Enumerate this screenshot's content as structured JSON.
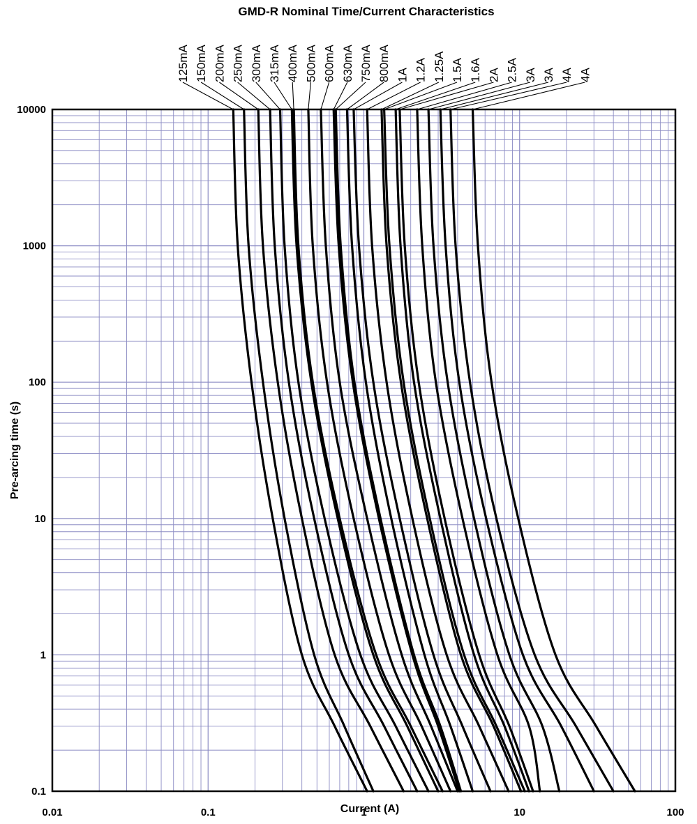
{
  "chart_data": {
    "type": "line",
    "title": "GMD-R Nominal Time/Current Characteristics",
    "xlabel": "Current (A)",
    "ylabel": "Pre-arcing time (s)",
    "xscale": "log",
    "yscale": "log",
    "xlim": [
      0.01,
      100
    ],
    "ylim": [
      0.1,
      10000
    ],
    "grid": true,
    "legend": "labels above plot with leader lines",
    "x_tick_labels": [
      "0.01",
      "0.1",
      "1",
      "10",
      "100"
    ],
    "y_tick_labels": [
      "0.1",
      "1",
      "10",
      "100",
      "1000",
      "10000"
    ],
    "colors": {
      "grid": "#8c8cc4",
      "curve": "#000000",
      "frame": "#000000"
    },
    "series": [
      {
        "name": "125mA",
        "x": [
          0.145,
          0.155,
          0.19,
          0.26,
          0.4,
          0.65,
          1.05
        ],
        "y": [
          10000,
          1000,
          100,
          10,
          1,
          0.3,
          0.1
        ]
      },
      {
        "name": "150mA",
        "x": [
          0.17,
          0.182,
          0.225,
          0.31,
          0.48,
          0.75,
          1.15
        ],
        "y": [
          10000,
          1000,
          100,
          10,
          1,
          0.3,
          0.1
        ]
      },
      {
        "name": "200mA",
        "x": [
          0.21,
          0.225,
          0.28,
          0.4,
          0.65,
          1.1,
          1.8
        ],
        "y": [
          10000,
          1000,
          100,
          10,
          1,
          0.3,
          0.1
        ]
      },
      {
        "name": "250mA",
        "x": [
          0.25,
          0.268,
          0.33,
          0.48,
          0.8,
          1.35,
          2.2
        ],
        "y": [
          10000,
          1000,
          100,
          10,
          1,
          0.3,
          0.1
        ]
      },
      {
        "name": "300mA",
        "x": [
          0.29,
          0.31,
          0.38,
          0.56,
          0.95,
          1.6,
          2.6
        ],
        "y": [
          10000,
          1000,
          100,
          10,
          1,
          0.3,
          0.1
        ]
      },
      {
        "name": "315mA",
        "x": [
          0.345,
          0.37,
          0.46,
          0.68,
          1.15,
          1.9,
          3.0
        ],
        "y": [
          10000,
          1000,
          100,
          10,
          1,
          0.3,
          0.1
        ]
      },
      {
        "name": "400mA",
        "x": [
          0.355,
          0.38,
          0.47,
          0.7,
          1.2,
          2.0,
          3.2
        ],
        "y": [
          10000,
          1000,
          100,
          10,
          1,
          0.3,
          0.1
        ]
      },
      {
        "name": "500mA",
        "x": [
          0.44,
          0.47,
          0.58,
          0.86,
          1.45,
          2.35,
          3.6
        ],
        "y": [
          10000,
          1000,
          100,
          10,
          1,
          0.3,
          0.1
        ]
      },
      {
        "name": "600mA",
        "x": [
          0.53,
          0.57,
          0.7,
          1.05,
          1.75,
          2.7,
          4.0
        ],
        "y": [
          10000,
          1000,
          100,
          10,
          1,
          0.3,
          0.1
        ]
      },
      {
        "name": "630mA",
        "x": [
          0.64,
          0.69,
          0.85,
          1.25,
          2.05,
          3.0,
          4.1
        ],
        "y": [
          10000,
          1000,
          100,
          10,
          1,
          0.3,
          0.1
        ]
      },
      {
        "name": "750mA",
        "x": [
          0.66,
          0.71,
          0.87,
          1.28,
          2.1,
          3.1,
          4.2
        ],
        "y": [
          10000,
          1000,
          100,
          10,
          1,
          0.3,
          0.1
        ]
      },
      {
        "name": "800mA",
        "x": [
          0.78,
          0.84,
          1.03,
          1.5,
          2.45,
          3.6,
          5.0
        ],
        "y": [
          10000,
          1000,
          100,
          10,
          1,
          0.3,
          0.1
        ]
      },
      {
        "name": "1A",
        "x": [
          0.86,
          0.93,
          1.15,
          1.7,
          2.8,
          4.3,
          6.5
        ],
        "y": [
          10000,
          1000,
          100,
          10,
          1,
          0.3,
          0.1
        ]
      },
      {
        "name": "1.2A",
        "x": [
          1.05,
          1.13,
          1.4,
          2.05,
          3.4,
          5.5,
          8.5
        ],
        "y": [
          10000,
          1000,
          100,
          10,
          1,
          0.3,
          0.1
        ]
      },
      {
        "name": "1.25A",
        "x": [
          1.3,
          1.4,
          1.73,
          2.55,
          4.2,
          6.8,
          10.2
        ],
        "y": [
          10000,
          1000,
          100,
          10,
          1,
          0.3,
          0.1
        ]
      },
      {
        "name": "1.5A",
        "x": [
          1.35,
          1.46,
          1.8,
          2.65,
          4.4,
          7.1,
          10.8
        ],
        "y": [
          10000,
          1000,
          100,
          10,
          1,
          0.3,
          0.1
        ]
      },
      {
        "name": "1.6A",
        "x": [
          1.6,
          1.72,
          2.1,
          3.1,
          5.1,
          8.0,
          11.5
        ],
        "y": [
          10000,
          1000,
          100,
          10,
          1,
          0.3,
          0.1
        ]
      },
      {
        "name": "2A",
        "x": [
          1.7,
          1.83,
          2.25,
          3.3,
          5.5,
          8.6,
          12.2
        ],
        "y": [
          10000,
          1000,
          100,
          10,
          1,
          0.3,
          0.1
        ]
      },
      {
        "name": "2.5A",
        "x": [
          2.2,
          2.37,
          2.9,
          4.3,
          7.2,
          11.5,
          13.5
        ],
        "y": [
          10000,
          1000,
          100,
          10,
          1,
          0.3,
          0.1
        ]
      },
      {
        "name": "3A",
        "x": [
          2.6,
          2.8,
          3.45,
          5.1,
          8.6,
          14.0,
          18.0
        ],
        "y": [
          10000,
          1000,
          100,
          10,
          1,
          0.3,
          0.1
        ]
      },
      {
        "name": "3A",
        "x": [
          3.1,
          3.35,
          4.1,
          6.1,
          10.5,
          18.5,
          30.0
        ],
        "y": [
          10000,
          1000,
          100,
          10,
          1,
          0.3,
          0.1
        ]
      },
      {
        "name": "4A",
        "x": [
          3.6,
          3.88,
          4.8,
          7.1,
          12.5,
          23.0,
          40.0
        ],
        "y": [
          10000,
          1000,
          100,
          10,
          1,
          0.3,
          0.1
        ]
      },
      {
        "name": "4A",
        "x": [
          5.0,
          5.4,
          6.6,
          9.8,
          17.0,
          31.0,
          55.0
        ],
        "y": [
          10000,
          1000,
          100,
          10,
          1,
          0.3,
          0.1
        ]
      }
    ]
  }
}
